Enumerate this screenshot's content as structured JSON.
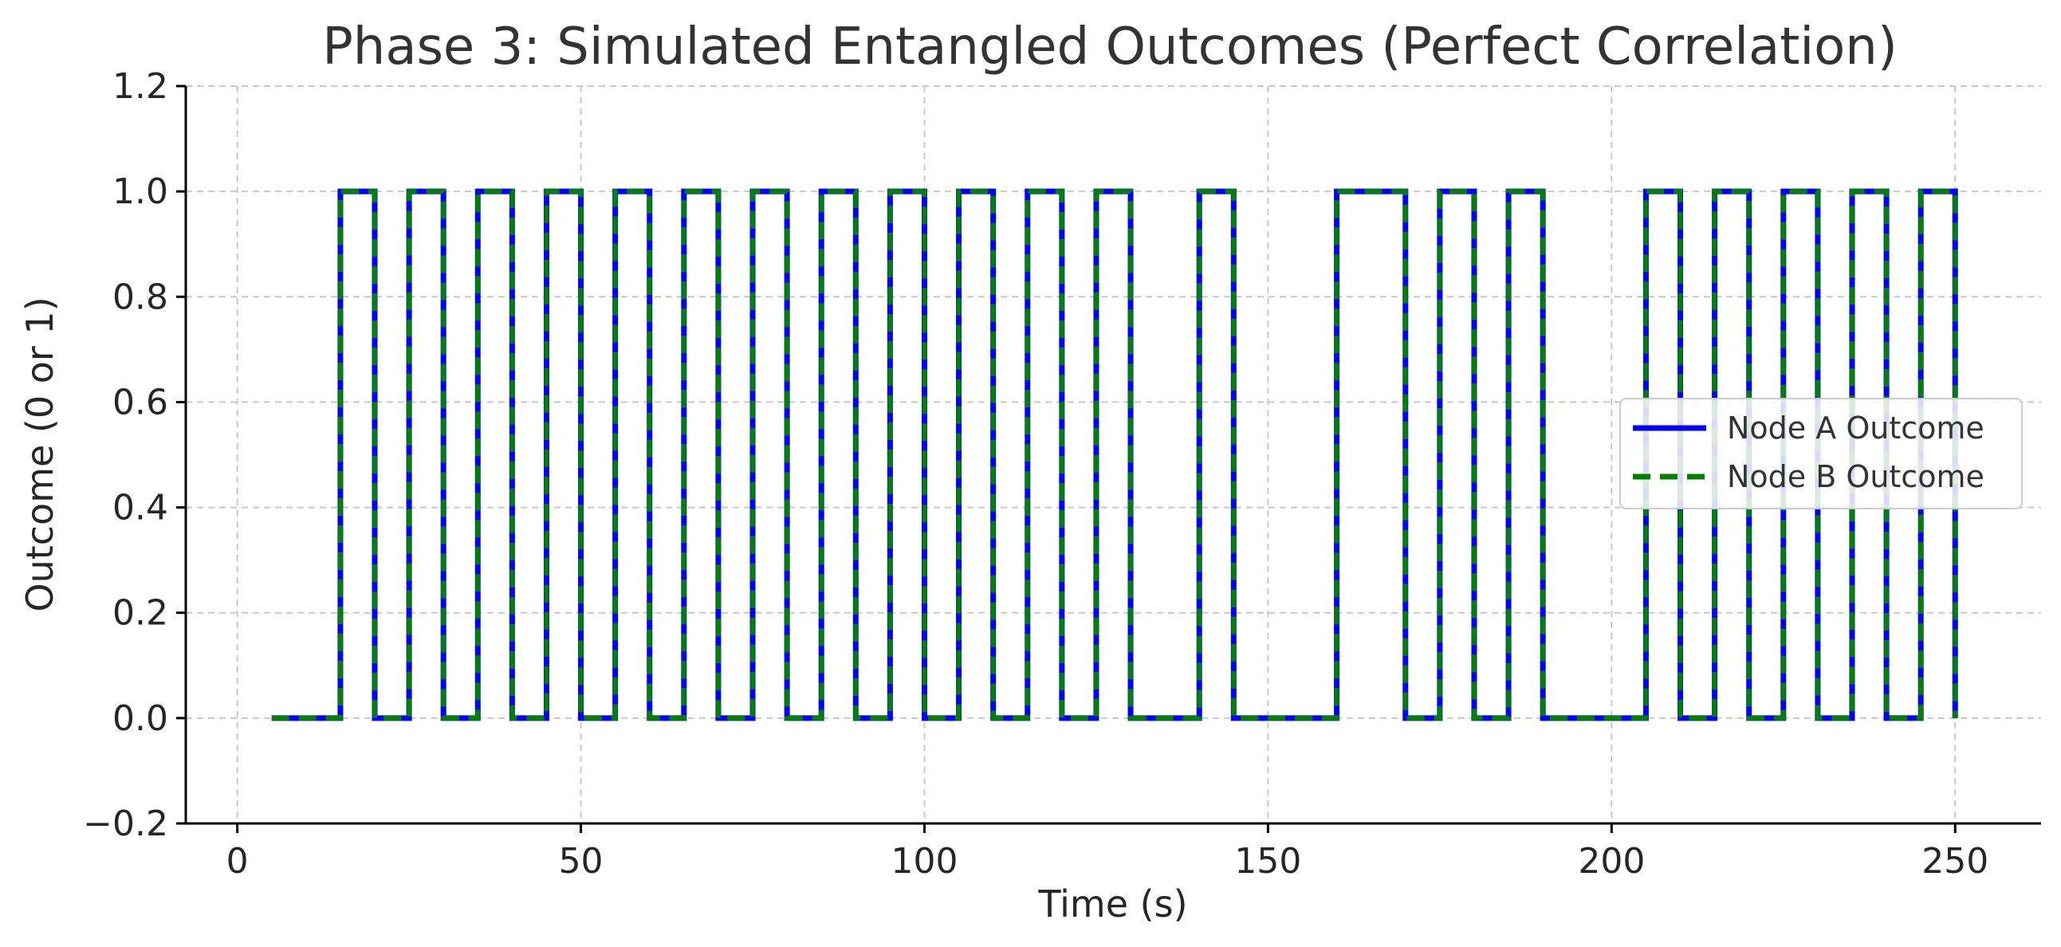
{
  "chart_data": {
    "type": "line",
    "title": "Phase 3: Simulated Entangled Outcomes (Perfect Correlation)",
    "xlabel": "Time (s)",
    "ylabel": "Outcome (0 or 1)",
    "xlim": [
      -7.5,
      262.5
    ],
    "ylim": [
      -0.2,
      1.2
    ],
    "xticks": [
      0,
      50,
      100,
      150,
      200,
      250
    ],
    "yticks": [
      -0.2,
      0.0,
      0.2,
      0.4,
      0.6,
      0.8,
      1.0,
      1.2
    ],
    "xtick_labels": [
      "0",
      "50",
      "100",
      "150",
      "200",
      "250"
    ],
    "ytick_labels": [
      "−0.2",
      "0.0",
      "0.2",
      "0.4",
      "0.6",
      "0.8",
      "1.0",
      "1.2"
    ],
    "grid": true,
    "legend_position": "center-right",
    "step": "post",
    "x": [
      5,
      10,
      15,
      20,
      25,
      30,
      35,
      40,
      45,
      50,
      55,
      60,
      65,
      70,
      75,
      80,
      85,
      90,
      95,
      100,
      105,
      110,
      115,
      120,
      125,
      130,
      135,
      140,
      145,
      150,
      155,
      160,
      165,
      170,
      175,
      180,
      185,
      190,
      195,
      200,
      205,
      210,
      215,
      220,
      225,
      230,
      235,
      240,
      245,
      250
    ],
    "series": [
      {
        "name": "Node A Outcome",
        "color": "#0000ff",
        "style": "solid",
        "values": [
          0,
          0,
          1,
          0,
          1,
          0,
          1,
          0,
          1,
          0,
          1,
          0,
          1,
          0,
          1,
          0,
          1,
          0,
          1,
          0,
          1,
          0,
          1,
          0,
          1,
          0,
          0,
          1,
          0,
          0,
          0,
          1,
          1,
          0,
          1,
          0,
          1,
          0,
          0,
          0,
          1,
          0,
          1,
          0,
          1,
          0,
          1,
          0,
          1,
          0
        ]
      },
      {
        "name": "Node B Outcome",
        "color": "#008000",
        "style": "dashed",
        "values": [
          0,
          0,
          1,
          0,
          1,
          0,
          1,
          0,
          1,
          0,
          1,
          0,
          1,
          0,
          1,
          0,
          1,
          0,
          1,
          0,
          1,
          0,
          1,
          0,
          1,
          0,
          0,
          1,
          0,
          0,
          0,
          1,
          1,
          0,
          1,
          0,
          1,
          0,
          0,
          0,
          1,
          0,
          1,
          0,
          1,
          0,
          1,
          0,
          1,
          0
        ]
      }
    ]
  }
}
